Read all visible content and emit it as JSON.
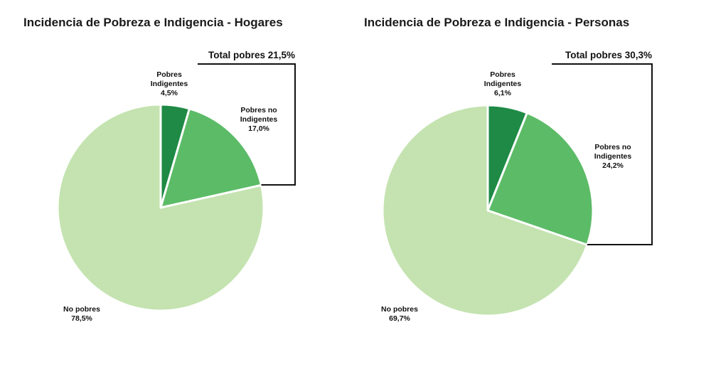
{
  "chart_data": [
    {
      "type": "pie",
      "title": "Incidencia de Pobreza e Indigencia - Hogares",
      "slices": [
        {
          "label": [
            "Pobres",
            "Indigentes"
          ],
          "value": 4.5,
          "value_label": "4,5%",
          "color": "#1e8a45"
        },
        {
          "label": [
            "Pobres no",
            "Indigentes"
          ],
          "value": 17.0,
          "value_label": "17,0%",
          "color": "#5cbb67"
        },
        {
          "label": [
            "No pobres"
          ],
          "value": 78.5,
          "value_label": "78,5%",
          "color": "#c4e3b0"
        }
      ],
      "total_label": "Total pobres 21,5%"
    },
    {
      "type": "pie",
      "title": "Incidencia de Pobreza e Indigencia - Personas",
      "slices": [
        {
          "label": [
            "Pobres",
            "Indigentes"
          ],
          "value": 6.1,
          "value_label": "6,1%",
          "color": "#1e8a45"
        },
        {
          "label": [
            "Pobres no",
            "Indigentes"
          ],
          "value": 24.2,
          "value_label": "24,2%",
          "color": "#5cbb67"
        },
        {
          "label": [
            "No pobres"
          ],
          "value": 69.7,
          "value_label": "69,7%",
          "color": "#c4e3b0"
        }
      ],
      "total_label": "Total pobres 30,3%"
    }
  ]
}
